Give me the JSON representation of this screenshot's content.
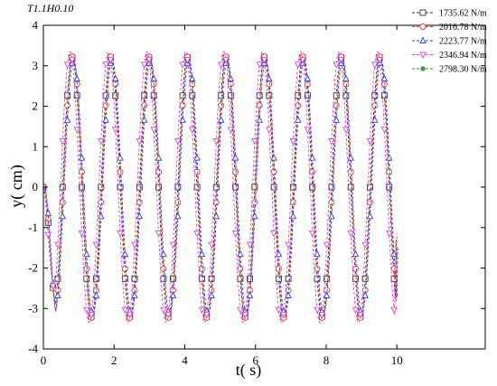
{
  "chart_data": {
    "type": "line",
    "title": "T1.1H0.10",
    "xlabel": "t( s)",
    "ylabel": "y( cm)",
    "xlim": [
      0,
      12.5
    ],
    "ylim": [
      -4,
      4
    ],
    "xticks": [
      0,
      2,
      4,
      6,
      8,
      10
    ],
    "yticks": [
      -4,
      -3,
      -2,
      -1,
      0,
      1,
      2,
      3,
      4
    ],
    "grid": false,
    "legend_position": "top-right",
    "period": 1.087,
    "series": [
      {
        "name": "1735.62 N/m",
        "color": "#333333",
        "marker": "square",
        "amplitude": 3.2,
        "phase_shift": 0.0,
        "end_t": 9.98,
        "end_value": -1.3
      },
      {
        "name": "2016.78 N/m",
        "color": "#e0402a",
        "marker": "circle",
        "amplitude": 3.25,
        "phase_shift": 0.02,
        "end_t": 10.0,
        "end_value": -1.15
      },
      {
        "name": "2223.77 N/m",
        "color": "#2e3fd6",
        "marker": "triangle-up",
        "amplitude": 3.15,
        "phase_shift": 0.04,
        "end_t": 10.02,
        "end_value": -1.5
      },
      {
        "name": "2346.94 N/m",
        "color": "#e040e0",
        "marker": "triangle-down",
        "amplitude": 3.35,
        "phase_shift": -0.06,
        "end_t": 9.95,
        "end_value": -1.35
      },
      {
        "name": "2798.30 N/m",
        "color": "#2a8a2a",
        "marker": "star",
        "amplitude": 0.0,
        "phase_shift": 0.0,
        "end_t": 0.0,
        "end_value": 0.0
      }
    ]
  }
}
